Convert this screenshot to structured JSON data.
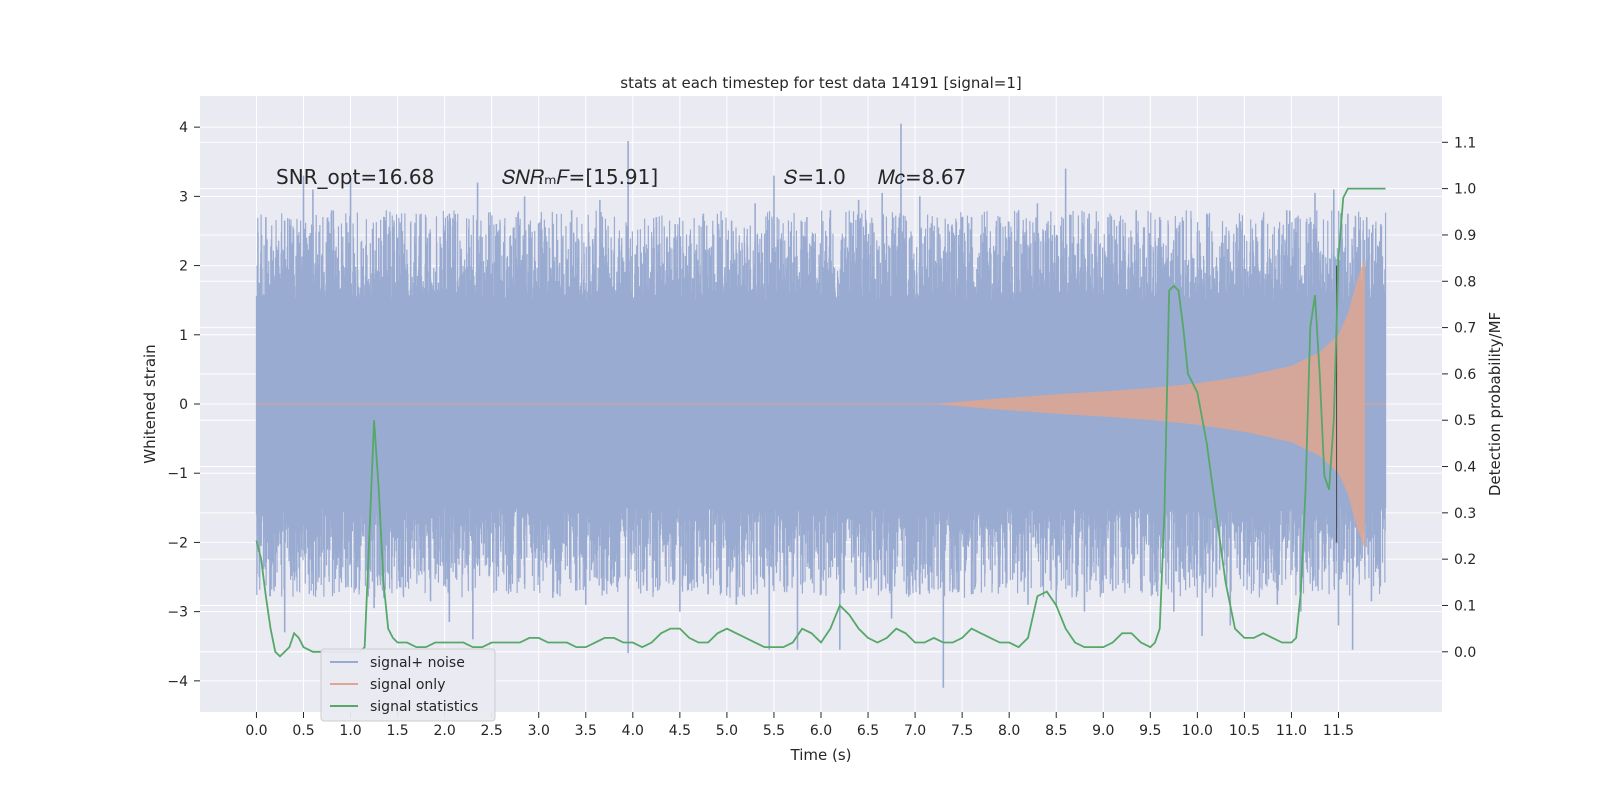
{
  "chart_data": {
    "type": "line",
    "title": "stats at each timestep for test data 14191 [signal=1]",
    "xlabel": "Time (s)",
    "ylabel": "Whitened strain",
    "y2label": "Detection probability/MF",
    "xlim": [
      -0.6,
      12.6
    ],
    "ylim": [
      -4.45,
      4.45
    ],
    "y2lim": [
      -0.13,
      1.2
    ],
    "grid": true,
    "legend_position": "lower-left",
    "x_ticks": [
      "0.0",
      "0.5",
      "1.0",
      "1.5",
      "2.0",
      "2.5",
      "3.0",
      "3.5",
      "4.0",
      "4.5",
      "5.0",
      "5.5",
      "6.0",
      "6.5",
      "7.0",
      "7.5",
      "8.0",
      "8.5",
      "9.0",
      "9.5",
      "10.0",
      "10.5",
      "11.0",
      "11.5"
    ],
    "y_ticks": [
      "−4",
      "−3",
      "−2",
      "−1",
      "0",
      "1",
      "2",
      "3",
      "4"
    ],
    "y2_ticks": [
      "0.0",
      "0.1",
      "0.2",
      "0.3",
      "0.4",
      "0.5",
      "0.6",
      "0.7",
      "0.8",
      "0.9",
      "1.0",
      "1.1"
    ],
    "annotations": [
      "SNR_opt=16.68",
      "𝑆𝑁𝑅ₘ𝐹=[15.91]",
      "𝑆=1.0",
      "𝑀𝑐=8.67"
    ],
    "series": [
      {
        "name": "signal+ noise",
        "color": "#9aabd1",
        "x_range": [
          0,
          12
        ],
        "noise_band": [
          -1.5,
          1.5
        ],
        "peaks": [
          [
            0.03,
            1.75
          ],
          [
            0.1,
            2.7
          ],
          [
            0.3,
            2.65
          ],
          [
            0.5,
            3.3
          ],
          [
            0.6,
            3.1
          ],
          [
            0.8,
            2.8
          ],
          [
            1.0,
            3.25
          ],
          [
            1.3,
            2.4
          ],
          [
            1.55,
            2.5
          ],
          [
            1.8,
            2.7
          ],
          [
            2.05,
            2.75
          ],
          [
            2.35,
            3.2
          ],
          [
            2.55,
            2.6
          ],
          [
            2.85,
            3.0
          ],
          [
            3.15,
            2.6
          ],
          [
            3.35,
            2.8
          ],
          [
            3.65,
            2.95
          ],
          [
            3.95,
            3.8
          ],
          [
            4.25,
            2.7
          ],
          [
            4.45,
            2.6
          ],
          [
            4.75,
            2.75
          ],
          [
            5.05,
            2.65
          ],
          [
            5.3,
            2.9
          ],
          [
            5.5,
            3.3
          ],
          [
            5.85,
            2.7
          ],
          [
            6.1,
            2.8
          ],
          [
            6.4,
            2.95
          ],
          [
            6.65,
            3.05
          ],
          [
            6.85,
            4.05
          ],
          [
            7.05,
            3.0
          ],
          [
            7.35,
            2.6
          ],
          [
            7.6,
            2.7
          ],
          [
            7.9,
            2.7
          ],
          [
            8.1,
            2.8
          ],
          [
            8.3,
            2.9
          ],
          [
            8.6,
            3.4
          ],
          [
            8.85,
            2.75
          ],
          [
            9.05,
            2.7
          ],
          [
            9.35,
            2.8
          ],
          [
            9.6,
            2.7
          ],
          [
            9.85,
            2.65
          ],
          [
            10.1,
            2.75
          ],
          [
            10.45,
            2.6
          ],
          [
            10.7,
            2.7
          ],
          [
            10.95,
            2.8
          ],
          [
            11.25,
            3.05
          ],
          [
            11.45,
            3.1
          ],
          [
            11.6,
            2.75
          ],
          [
            11.8,
            2.7
          ],
          [
            11.95,
            2.6
          ]
        ],
        "troughs": [
          [
            0.05,
            -2.05
          ],
          [
            0.3,
            -3.3
          ],
          [
            0.6,
            -2.6
          ],
          [
            0.95,
            -2.65
          ],
          [
            1.25,
            -2.95
          ],
          [
            1.55,
            -2.5
          ],
          [
            1.85,
            -2.85
          ],
          [
            2.05,
            -3.15
          ],
          [
            2.3,
            -3.4
          ],
          [
            2.55,
            -2.7
          ],
          [
            2.85,
            -2.6
          ],
          [
            3.15,
            -2.8
          ],
          [
            3.5,
            -2.9
          ],
          [
            3.95,
            -3.6
          ],
          [
            4.15,
            -2.7
          ],
          [
            4.5,
            -3.0
          ],
          [
            4.8,
            -2.75
          ],
          [
            5.1,
            -2.9
          ],
          [
            5.45,
            -3.55
          ],
          [
            5.75,
            -3.55
          ],
          [
            6.0,
            -2.75
          ],
          [
            6.2,
            -3.55
          ],
          [
            6.45,
            -2.7
          ],
          [
            6.75,
            -3.1
          ],
          [
            7.05,
            -2.75
          ],
          [
            7.3,
            -4.1
          ],
          [
            7.6,
            -2.75
          ],
          [
            7.9,
            -2.6
          ],
          [
            8.2,
            -2.9
          ],
          [
            8.5,
            -2.9
          ],
          [
            8.8,
            -3.0
          ],
          [
            9.1,
            -2.7
          ],
          [
            9.4,
            -2.7
          ],
          [
            9.75,
            -3.0
          ],
          [
            10.05,
            -3.35
          ],
          [
            10.35,
            -3.2
          ],
          [
            10.6,
            -2.6
          ],
          [
            10.85,
            -2.9
          ],
          [
            11.1,
            -3.0
          ],
          [
            11.5,
            -3.2
          ],
          [
            11.65,
            -3.55
          ],
          [
            11.85,
            -2.85
          ]
        ]
      },
      {
        "name": "signal only",
        "color": "#dfa692",
        "envelope": [
          [
            7.2,
            0.0
          ],
          [
            7.8,
            0.07
          ],
          [
            8.5,
            0.14
          ],
          [
            9.0,
            0.18
          ],
          [
            9.5,
            0.23
          ],
          [
            10.0,
            0.3
          ],
          [
            10.5,
            0.4
          ],
          [
            11.0,
            0.55
          ],
          [
            11.3,
            0.75
          ],
          [
            11.5,
            1.0
          ],
          [
            11.6,
            1.3
          ],
          [
            11.7,
            1.8
          ],
          [
            11.78,
            2.1
          ]
        ]
      },
      {
        "name": "signal statistics",
        "color": "#55a868",
        "x": [
          0.0,
          0.05,
          0.1,
          0.15,
          0.2,
          0.25,
          0.3,
          0.35,
          0.4,
          0.45,
          0.5,
          0.6,
          0.7,
          0.8,
          0.9,
          1.0,
          1.1,
          1.15,
          1.2,
          1.25,
          1.3,
          1.35,
          1.4,
          1.45,
          1.5,
          1.6,
          1.7,
          1.8,
          1.9,
          2.0,
          2.1,
          2.2,
          2.3,
          2.4,
          2.5,
          2.6,
          2.7,
          2.8,
          2.9,
          3.0,
          3.1,
          3.2,
          3.3,
          3.4,
          3.5,
          3.6,
          3.7,
          3.8,
          3.9,
          4.0,
          4.1,
          4.2,
          4.3,
          4.4,
          4.5,
          4.6,
          4.7,
          4.8,
          4.9,
          5.0,
          5.1,
          5.2,
          5.3,
          5.4,
          5.5,
          5.6,
          5.7,
          5.8,
          5.9,
          6.0,
          6.1,
          6.2,
          6.3,
          6.4,
          6.5,
          6.6,
          6.7,
          6.8,
          6.9,
          7.0,
          7.1,
          7.2,
          7.3,
          7.4,
          7.5,
          7.6,
          7.7,
          7.8,
          7.9,
          8.0,
          8.1,
          8.2,
          8.3,
          8.4,
          8.5,
          8.6,
          8.7,
          8.8,
          8.9,
          9.0,
          9.1,
          9.2,
          9.3,
          9.4,
          9.5,
          9.55,
          9.6,
          9.65,
          9.7,
          9.75,
          9.8,
          9.85,
          9.9,
          9.95,
          10.0,
          10.1,
          10.2,
          10.3,
          10.4,
          10.5,
          10.6,
          10.7,
          10.8,
          10.9,
          11.0,
          11.05,
          11.1,
          11.15,
          11.2,
          11.25,
          11.3,
          11.35,
          11.4,
          11.45,
          11.5,
          11.55,
          11.6,
          11.65,
          11.7,
          11.8,
          11.9,
          12.0
        ],
        "values": [
          0.24,
          0.2,
          0.12,
          0.05,
          0.0,
          -0.01,
          0.0,
          0.01,
          0.04,
          0.03,
          0.01,
          0.0,
          0.0,
          0.0,
          0.0,
          0.0,
          0.0,
          0.01,
          0.25,
          0.5,
          0.35,
          0.15,
          0.05,
          0.03,
          0.02,
          0.02,
          0.01,
          0.01,
          0.02,
          0.02,
          0.02,
          0.02,
          0.01,
          0.01,
          0.02,
          0.02,
          0.02,
          0.02,
          0.03,
          0.03,
          0.02,
          0.02,
          0.02,
          0.01,
          0.01,
          0.02,
          0.03,
          0.03,
          0.02,
          0.02,
          0.01,
          0.02,
          0.04,
          0.05,
          0.05,
          0.03,
          0.02,
          0.02,
          0.04,
          0.05,
          0.04,
          0.03,
          0.02,
          0.01,
          0.01,
          0.01,
          0.02,
          0.05,
          0.04,
          0.02,
          0.05,
          0.1,
          0.08,
          0.05,
          0.03,
          0.02,
          0.03,
          0.05,
          0.04,
          0.02,
          0.02,
          0.03,
          0.02,
          0.02,
          0.03,
          0.05,
          0.04,
          0.03,
          0.02,
          0.02,
          0.01,
          0.03,
          0.12,
          0.13,
          0.1,
          0.05,
          0.02,
          0.01,
          0.01,
          0.01,
          0.02,
          0.04,
          0.04,
          0.02,
          0.01,
          0.02,
          0.05,
          0.3,
          0.78,
          0.79,
          0.78,
          0.7,
          0.6,
          0.58,
          0.56,
          0.45,
          0.3,
          0.15,
          0.05,
          0.03,
          0.03,
          0.04,
          0.03,
          0.02,
          0.02,
          0.03,
          0.13,
          0.35,
          0.7,
          0.77,
          0.6,
          0.38,
          0.35,
          0.5,
          0.85,
          0.98,
          1.0,
          1.0,
          1.0,
          1.0,
          1.0,
          1.0
        ]
      }
    ],
    "vline_x": 11.48
  }
}
